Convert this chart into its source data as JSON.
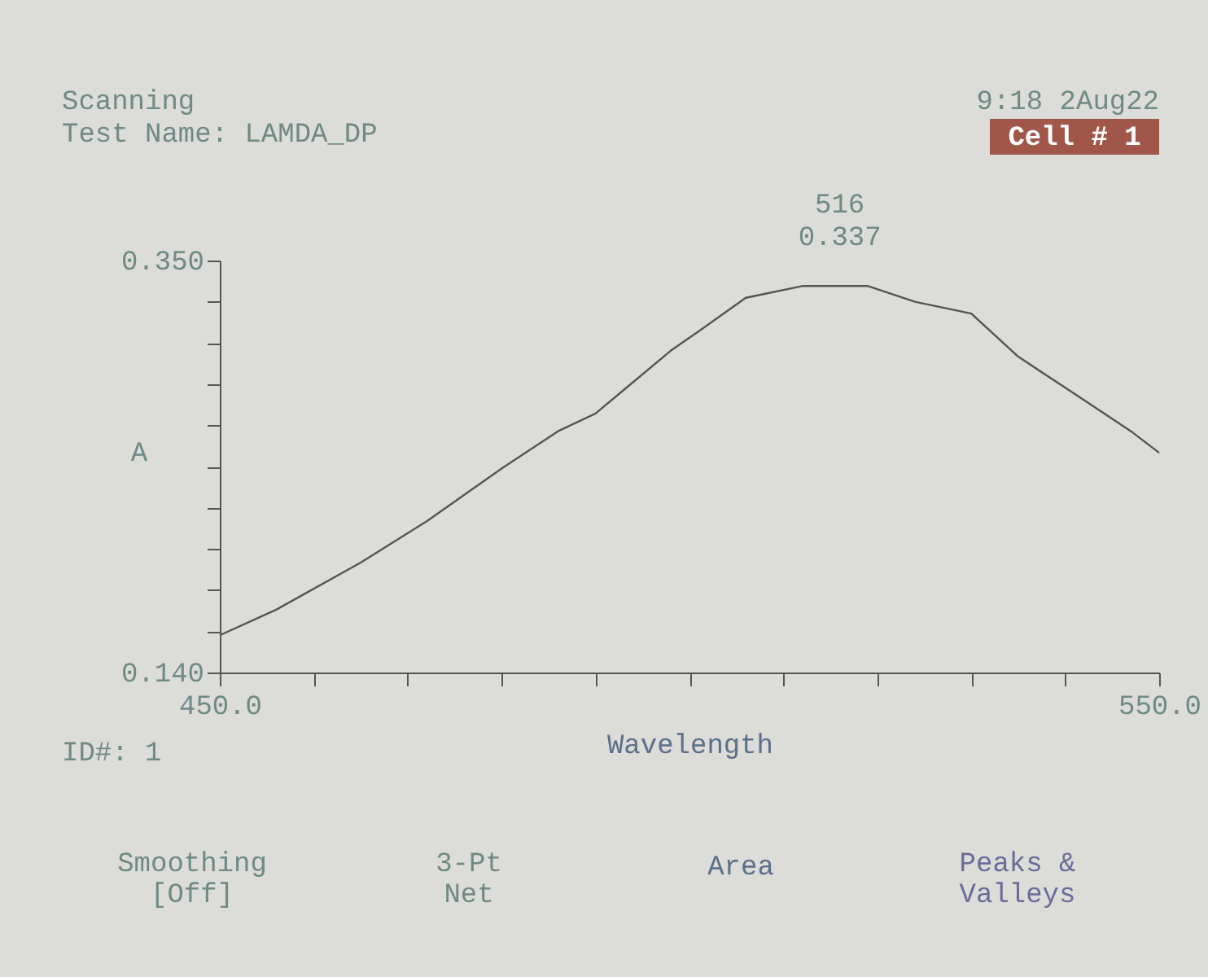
{
  "chart_data": {
    "type": "line",
    "title": "Scanning",
    "subtitle": "Test Name: LAMDA_DP",
    "xlabel": "Wavelength",
    "ylabel": "A",
    "x": [
      450,
      456,
      465,
      472,
      480,
      486,
      490,
      493,
      498,
      501,
      506,
      512,
      516,
      519,
      524,
      530,
      535,
      541,
      547,
      550
    ],
    "series": [
      {
        "color": "#555555",
        "values": [
          0.159,
          0.172,
          0.196,
          0.217,
          0.244,
          0.263,
          0.272,
          0.284,
          0.304,
          0.314,
          0.331,
          0.337,
          0.337,
          0.337,
          0.329,
          0.323,
          0.301,
          0.282,
          0.263,
          0.252
        ]
      }
    ],
    "xlim": [
      450,
      550
    ],
    "ylim": [
      0.14,
      0.35
    ],
    "xticks": [
      {
        "value": 450,
        "label": "450.0"
      },
      {
        "value": 460,
        "label": null
      },
      {
        "value": 470,
        "label": null
      },
      {
        "value": 480,
        "label": null
      },
      {
        "value": 490,
        "label": null
      },
      {
        "value": 500,
        "label": null
      },
      {
        "value": 510,
        "label": null
      },
      {
        "value": 520,
        "label": null
      },
      {
        "value": 530,
        "label": null
      },
      {
        "value": 540,
        "label": null
      },
      {
        "value": 550,
        "label": "550.0"
      }
    ],
    "yticks": [
      {
        "value": 0.14,
        "label": "0.140"
      },
      {
        "value": 0.161,
        "label": null
      },
      {
        "value": 0.182,
        "label": null
      },
      {
        "value": 0.203,
        "label": null
      },
      {
        "value": 0.224,
        "label": null
      },
      {
        "value": 0.245,
        "label": null
      },
      {
        "value": 0.266,
        "label": null
      },
      {
        "value": 0.287,
        "label": null
      },
      {
        "value": 0.308,
        "label": null
      },
      {
        "value": 0.329,
        "label": null
      },
      {
        "value": 0.35,
        "label": "0.350"
      }
    ],
    "annotations": [
      {
        "text": "516",
        "x": 516,
        "y": 0.337
      },
      {
        "text": "0.337",
        "x": 516,
        "y": 0.337
      },
      "9:18 2Aug22",
      "Cell # 1",
      "ID#: 1",
      "Smoothing\n[Off]",
      "3-Pt\nNet",
      "Area",
      "Peaks &\nValleys"
    ],
    "marker": "none",
    "line_style": "solid"
  }
}
